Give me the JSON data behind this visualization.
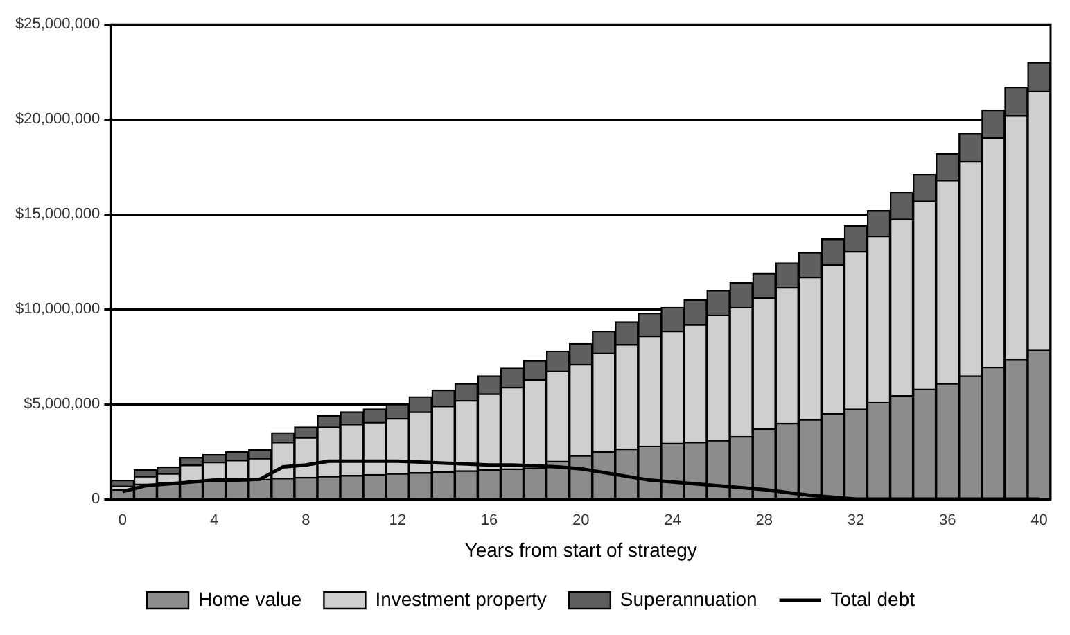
{
  "chart_data": {
    "type": "bar",
    "stacked": true,
    "xlabel": "Years from start of strategy",
    "categories": [
      "0",
      null,
      null,
      null,
      "4",
      null,
      null,
      null,
      "8",
      null,
      null,
      null,
      "12",
      null,
      null,
      null,
      "16",
      null,
      null,
      null,
      "20",
      null,
      null,
      null,
      "24",
      null,
      null,
      null,
      "28",
      null,
      null,
      null,
      "32",
      null,
      null,
      null,
      "36",
      null,
      null,
      null,
      "40"
    ],
    "series": [
      {
        "name": "Home value",
        "color": "#8c8c8c",
        "values": [
          500000,
          800000,
          850000,
          900000,
          950000,
          1000000,
          1050000,
          1100000,
          1150000,
          1200000,
          1250000,
          1300000,
          1350000,
          1400000,
          1450000,
          1500000,
          1550000,
          1600000,
          1650000,
          2000000,
          2300000,
          2500000,
          2650000,
          2800000,
          2950000,
          3000000,
          3100000,
          3300000,
          3700000,
          4000000,
          4200000,
          4500000,
          4750000,
          5100000,
          5450000,
          5800000,
          6100000,
          6500000,
          6950000,
          7350000,
          7850000
        ]
      },
      {
        "name": "Investment property",
        "color": "#cfcfcf",
        "values": [
          200000,
          400000,
          500000,
          900000,
          1000000,
          1050000,
          1100000,
          1900000,
          2100000,
          2600000,
          2700000,
          2750000,
          2900000,
          3200000,
          3450000,
          3700000,
          4000000,
          4300000,
          4650000,
          4750000,
          4800000,
          5200000,
          5500000,
          5800000,
          5900000,
          6200000,
          6600000,
          6800000,
          6900000,
          7150000,
          7500000,
          7850000,
          8300000,
          8750000,
          9300000,
          9900000,
          10700000,
          11300000,
          12100000,
          12850000,
          13650000
        ]
      },
      {
        "name": "Superannuation",
        "color": "#5f5f5f",
        "values": [
          300000,
          350000,
          350000,
          400000,
          400000,
          450000,
          450000,
          500000,
          550000,
          600000,
          650000,
          700000,
          750000,
          800000,
          850000,
          900000,
          950000,
          1000000,
          1000000,
          1050000,
          1100000,
          1150000,
          1200000,
          1200000,
          1250000,
          1300000,
          1300000,
          1300000,
          1300000,
          1300000,
          1300000,
          1350000,
          1350000,
          1350000,
          1400000,
          1400000,
          1400000,
          1450000,
          1450000,
          1500000,
          1500000
        ]
      },
      {
        "name": "Total debt",
        "type": "line",
        "color": "#000000",
        "values": [
          400000,
          700000,
          800000,
          900000,
          1000000,
          1000000,
          1050000,
          1700000,
          1800000,
          2000000,
          2000000,
          2000000,
          2000000,
          1950000,
          1900000,
          1850000,
          1800000,
          1800000,
          1750000,
          1700000,
          1600000,
          1400000,
          1200000,
          1000000,
          900000,
          800000,
          700000,
          600000,
          500000,
          350000,
          200000,
          100000,
          0,
          0,
          0,
          0,
          0,
          0,
          0,
          0,
          0
        ]
      }
    ],
    "ylim": [
      0,
      25000000
    ],
    "yticks": [
      0,
      {
        "value": 5000000,
        "label": "$5,000,000"
      },
      {
        "value": 10000000,
        "label": "$10,000,000"
      },
      {
        "value": 15000000,
        "label": "$15,000,000"
      },
      {
        "value": 20000000,
        "label": "$20,000,000"
      },
      {
        "value": 25000000,
        "label": "$25,000,000"
      }
    ],
    "grid": "y",
    "legend": "bottom",
    "marker": "none",
    "line_style": "solid"
  }
}
